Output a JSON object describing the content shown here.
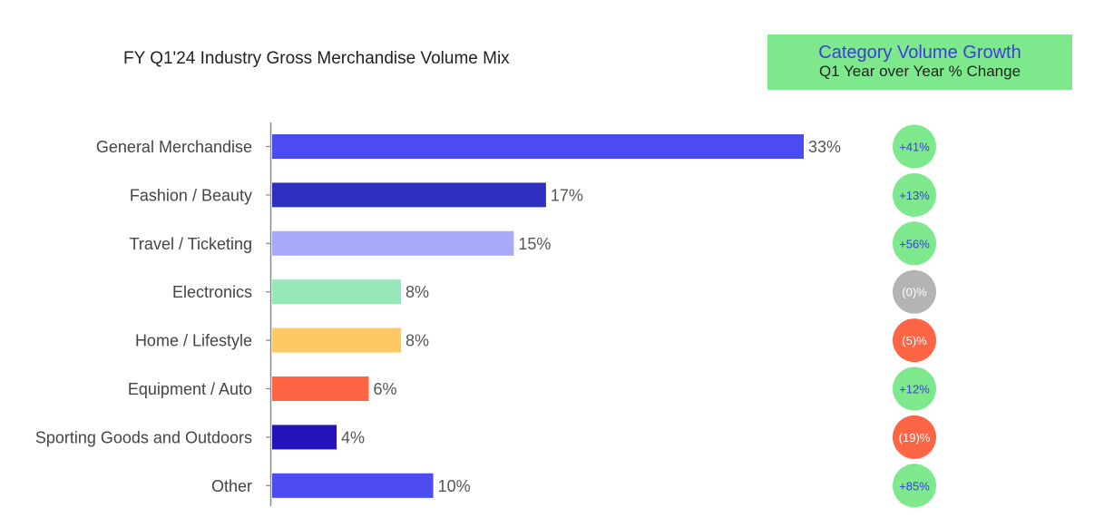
{
  "chart_data": {
    "type": "bar",
    "orientation": "horizontal",
    "title": "FY Q1'24 Industry Gross Merchandise Volume Mix",
    "categories": [
      "General Merchandise",
      "Fashion / Beauty",
      "Travel / Ticketing",
      "Electronics",
      "Home / Lifestyle",
      "Equipment / Auto",
      "Sporting Goods and Outdoors",
      "Other"
    ],
    "values": [
      33,
      17,
      15,
      8,
      8,
      6,
      4,
      10
    ],
    "value_labels": [
      "33%",
      "17%",
      "15%",
      "8%",
      "8%",
      "6%",
      "4%",
      "10%"
    ],
    "bar_colors": [
      "#4b4bf0",
      "#2f2fbf",
      "#a9a9f9",
      "#97e8b8",
      "#fec864",
      "#fd6544",
      "#2413b8",
      "#4b4bf0"
    ],
    "xlim": [
      0,
      33
    ],
    "grid": false,
    "growth_panel": {
      "title": "Category Volume Growth",
      "subtitle": "Q1 Year over Year % Change",
      "values": [
        "+41%",
        "+13%",
        "+56%",
        "(0)%",
        "(5)%",
        "+12%",
        "(19)%",
        "+85%"
      ],
      "colors": [
        "#7ee98c",
        "#7ee98c",
        "#7ee98c",
        "#b4b4b4",
        "#fd6544",
        "#7ee98c",
        "#fd6544",
        "#7ee98c"
      ],
      "text_colors": [
        "#3d3ddc",
        "#3d3ddc",
        "#3d3ddc",
        "#ffffff",
        "#ffffff",
        "#3d3ddc",
        "#ffffff",
        "#3d3ddc"
      ]
    }
  }
}
